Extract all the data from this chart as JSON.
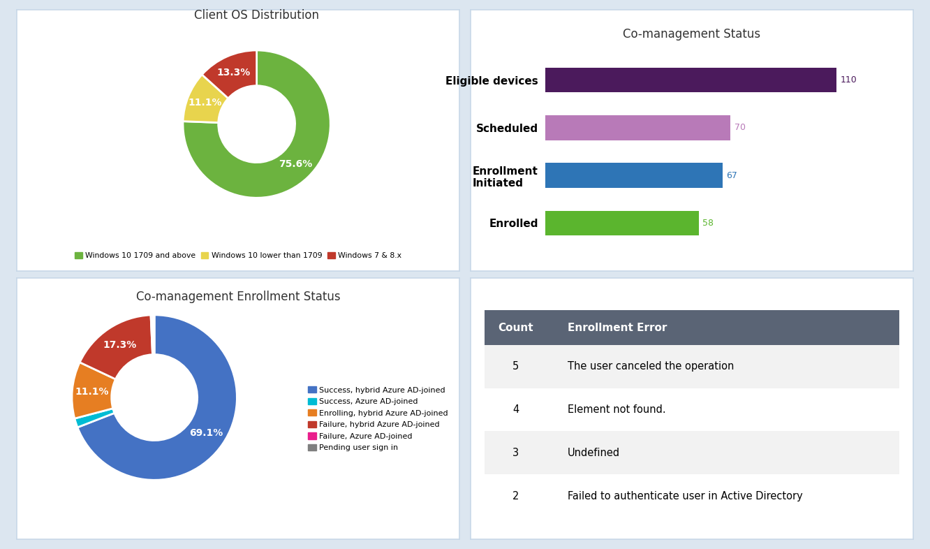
{
  "panel1": {
    "title": "Client OS Distribution",
    "slices": [
      75.6,
      11.1,
      13.3
    ],
    "colors": [
      "#6cb33f",
      "#e8d44d",
      "#c0392b"
    ],
    "labels": [
      "75.6%",
      "11.1%",
      "13.3%"
    ],
    "legend_labels": [
      "Windows 10 1709 and above",
      "Windows 10 lower than 1709",
      "Windows 7 & 8.x"
    ],
    "legend_colors": [
      "#6cb33f",
      "#e8d44d",
      "#c0392b"
    ]
  },
  "panel2": {
    "title": "Co-management Status",
    "categories": [
      "Eligible devices",
      "Scheduled",
      "Enrollment\nInitiated",
      "Enrolled"
    ],
    "values": [
      110,
      70,
      67,
      58
    ],
    "colors": [
      "#4b1a5c",
      "#b87ab8",
      "#2e75b6",
      "#5bb52e"
    ],
    "value_colors": [
      "#4b1a5c",
      "#b87ab8",
      "#2e75b6",
      "#5bb52e"
    ]
  },
  "panel3": {
    "title": "Co-management Enrollment Status",
    "slices": [
      69.1,
      1.8,
      11.1,
      17.3,
      0.4,
      0.3
    ],
    "colors": [
      "#4472c4",
      "#00bcd4",
      "#e67e22",
      "#c0392b",
      "#e91e8c",
      "#7f7f7f"
    ],
    "labels": [
      "69.1%",
      "",
      "11.1%",
      "17.3%",
      "",
      ""
    ],
    "legend_labels": [
      "Success, hybrid Azure AD-joined",
      "Success, Azure AD-joined",
      "Enrolling, hybrid Azure AD-joined",
      "Failure, hybrid Azure AD-joined",
      "Failure, Azure AD-joined",
      "Pending user sign in"
    ],
    "legend_colors": [
      "#4472c4",
      "#00bcd4",
      "#e67e22",
      "#c0392b",
      "#e91e8c",
      "#7f7f7f"
    ]
  },
  "panel4": {
    "header": [
      "Count",
      "Enrollment Error"
    ],
    "header_bg": "#5a6475",
    "header_fg": "#ffffff",
    "rows": [
      [
        5,
        "The user canceled the operation"
      ],
      [
        4,
        "Element not found."
      ],
      [
        3,
        "Undefined"
      ],
      [
        2,
        "Failed to authenticate user in Active Directory"
      ]
    ],
    "row_bg": [
      "#f2f2f2",
      "#ffffff",
      "#f2f2f2",
      "#ffffff"
    ]
  },
  "bg_color": "#dce6f0",
  "panel_bg": "#ffffff",
  "title_color": "#333333",
  "border_color": "#c8d8e8"
}
